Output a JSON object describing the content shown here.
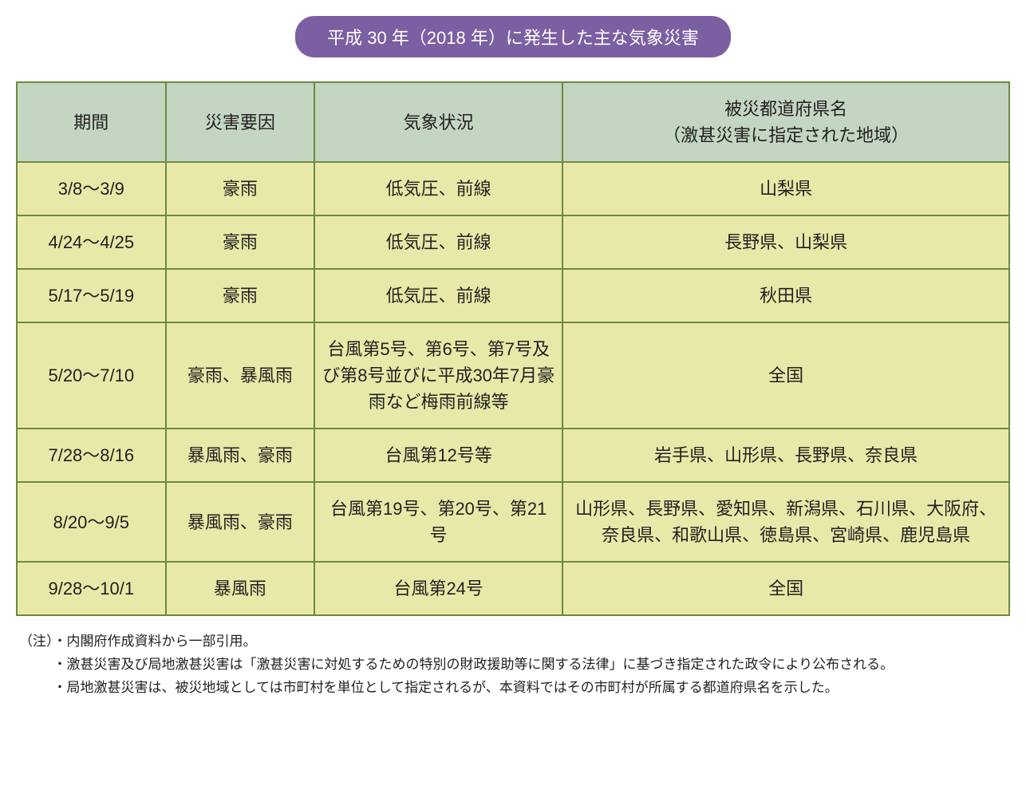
{
  "title": "平成 30 年（2018 年）に発生した主な気象災害",
  "colors": {
    "title_bg": "#7b5fa3",
    "title_text": "#ffffff",
    "header_bg": "#c3d6c1",
    "cell_bg": "#e8e9a8",
    "border": "#6b8a3f",
    "text": "#231f20"
  },
  "table": {
    "headers": {
      "period": "期間",
      "cause": "災害要因",
      "weather": "気象状況",
      "area": "被災都道府県名\n（激甚災害に指定された地域）"
    },
    "rows": [
      {
        "period": "3/8～3/9",
        "cause": "豪雨",
        "weather": "低気圧、前線",
        "area": "山梨県"
      },
      {
        "period": "4/24～4/25",
        "cause": "豪雨",
        "weather": "低気圧、前線",
        "area": "長野県、山梨県"
      },
      {
        "period": "5/17～5/19",
        "cause": "豪雨",
        "weather": "低気圧、前線",
        "area": "秋田県"
      },
      {
        "period": "5/20～7/10",
        "cause": "豪雨、暴風雨",
        "weather": "台風第5号、第6号、第7号及び第8号並びに平成30年7月豪雨など梅雨前線等",
        "area": "全国"
      },
      {
        "period": "7/28～8/16",
        "cause": "暴風雨、豪雨",
        "weather": "台風第12号等",
        "area": "岩手県、山形県、長野県、奈良県"
      },
      {
        "period": "8/20～9/5",
        "cause": "暴風雨、豪雨",
        "weather": "台風第19号、第20号、第21号",
        "area": "山形県、長野県、愛知県、新潟県、石川県、大阪府、奈良県、和歌山県、徳島県、宮崎県、鹿児島県"
      },
      {
        "period": "9/28～10/1",
        "cause": "暴風雨",
        "weather": "台風第24号",
        "area": "全国"
      }
    ]
  },
  "notes": {
    "line1": "（注）・内閣府作成資料から一部引用。",
    "line2": "・激甚災害及び局地激甚災害は「激甚災害に対処するための特別の財政援助等に関する法律」に基づき指定された政令により公布される。",
    "line3": "・局地激甚災害は、被災地域としては市町村を単位として指定されるが、本資料ではその市町村が所属する都道府県名を示した。"
  }
}
